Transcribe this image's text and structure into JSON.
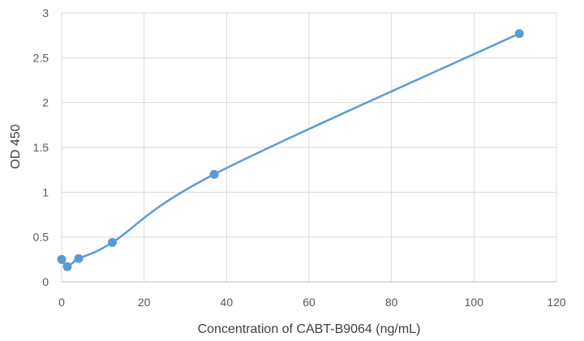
{
  "chart_data": {
    "type": "scatter",
    "title": "",
    "xlabel": "Concentration of CABT-B9064 (ng/mL)",
    "ylabel": "OD 450",
    "xlim": [
      0,
      120
    ],
    "ylim": [
      0,
      3
    ],
    "xticks": [
      "0",
      "20",
      "40",
      "60",
      "80",
      "100",
      "120"
    ],
    "yticks": [
      "0",
      "0.5",
      "1",
      "1.5",
      "2",
      "2.5",
      "3"
    ],
    "grid": true,
    "legend": "none",
    "smooth_line": true,
    "color": "#5b9bd5",
    "series": [
      {
        "x": [
          0,
          1.37,
          4.12,
          12.3,
          37,
          111
        ],
        "y": [
          0.25,
          0.17,
          0.26,
          0.44,
          1.2,
          2.77
        ]
      }
    ]
  }
}
